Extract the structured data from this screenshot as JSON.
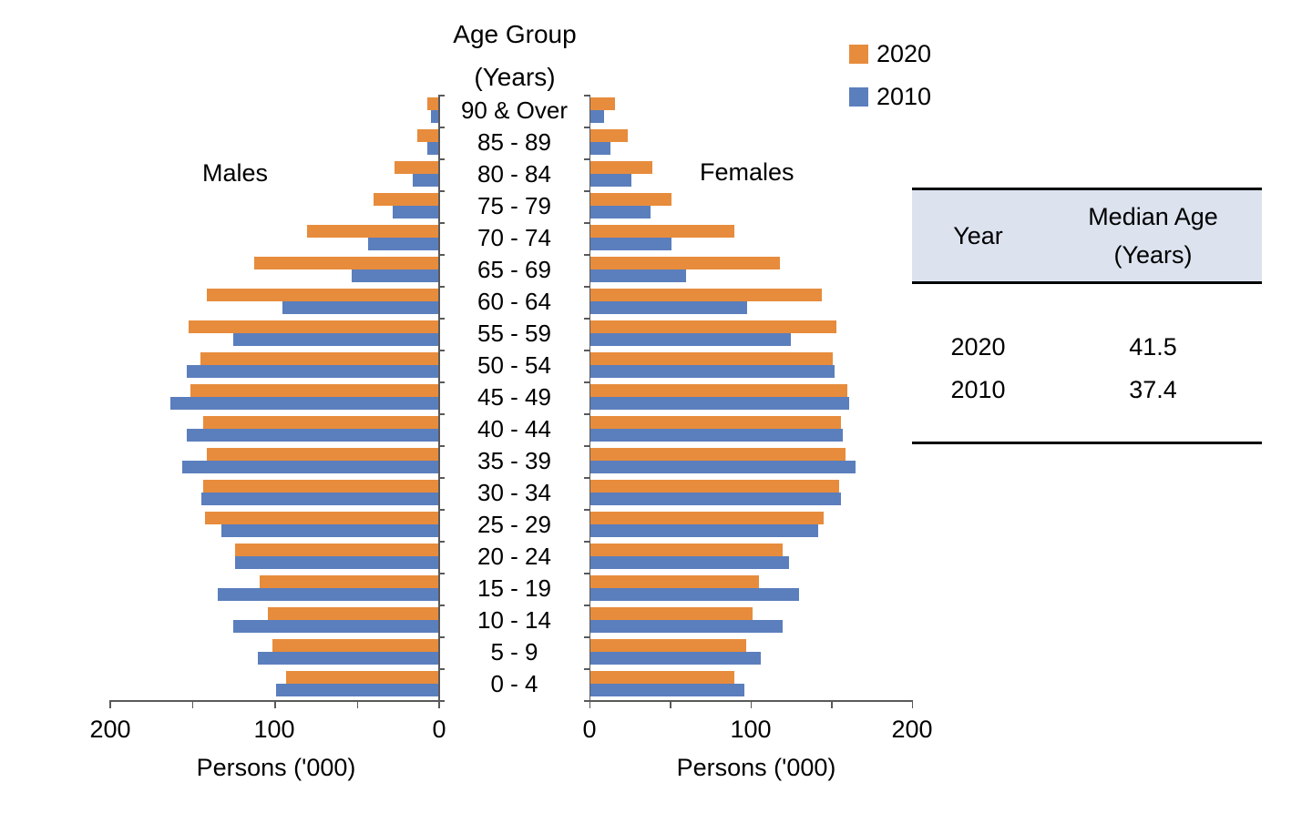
{
  "title": {
    "line1": "Age Group",
    "line2": "(Years)"
  },
  "legend": {
    "items": [
      {
        "label": "2020",
        "color": "#E78C3C"
      },
      {
        "label": "2010",
        "color": "#5B7EBD"
      }
    ]
  },
  "side_labels": {
    "males": "Males",
    "females": "Females"
  },
  "axis": {
    "xlabel": "Persons ('000)",
    "male_tick_labels": [
      "200",
      "100",
      "0"
    ],
    "female_tick_labels": [
      "0",
      "100",
      "200"
    ]
  },
  "table": {
    "col1_header": "Year",
    "col2_header": "Median Age (Years)",
    "rows": [
      {
        "year": "2020",
        "median_age": "41.5"
      },
      {
        "year": "2010",
        "median_age": "37.4"
      }
    ]
  },
  "chart_data": {
    "type": "bar",
    "subtype": "population-pyramid",
    "title": "Age Group (Years)",
    "xlabel": "Persons ('000)",
    "unit": "thousands of persons",
    "xlim": [
      0,
      200
    ],
    "axis_ticks": [
      0,
      50,
      100,
      150,
      200
    ],
    "labeled_ticks": [
      0,
      100,
      200
    ],
    "legend_position": "top-right",
    "grid": false,
    "categories": [
      "90 & Over",
      "85 - 89",
      "80 - 84",
      "75 - 79",
      "70 - 74",
      "65 - 69",
      "60 - 64",
      "55 - 59",
      "50 - 54",
      "45 - 49",
      "40 - 44",
      "35 - 39",
      "30 - 34",
      "25 - 29",
      "20 - 24",
      "15 - 19",
      "10 - 14",
      "5 - 9",
      "0 - 4"
    ],
    "series": [
      {
        "name": "Males 2020",
        "side": "male",
        "year": "2020",
        "color": "#E78C3C",
        "values": [
          7,
          13,
          27,
          40,
          80,
          112,
          141,
          152,
          145,
          151,
          143,
          141,
          143,
          142,
          124,
          109,
          104,
          101,
          93
        ]
      },
      {
        "name": "Males 2010",
        "side": "male",
        "year": "2010",
        "color": "#5B7EBD",
        "values": [
          5,
          7,
          16,
          28,
          43,
          53,
          95,
          125,
          153,
          163,
          153,
          156,
          144,
          132,
          124,
          134,
          125,
          110,
          99
        ]
      },
      {
        "name": "Females 2020",
        "side": "female",
        "year": "2020",
        "color": "#E78C3C",
        "values": [
          16,
          24,
          39,
          51,
          90,
          118,
          144,
          153,
          151,
          160,
          156,
          159,
          155,
          145,
          120,
          105,
          101,
          97,
          90
        ]
      },
      {
        "name": "Females 2010",
        "side": "female",
        "year": "2010",
        "color": "#5B7EBD",
        "values": [
          9,
          13,
          26,
          38,
          51,
          60,
          98,
          125,
          152,
          161,
          157,
          165,
          156,
          142,
          124,
          130,
          120,
          106,
          96
        ]
      }
    ],
    "median_age_table": {
      "2020": 41.5,
      "2010": 37.4
    }
  }
}
